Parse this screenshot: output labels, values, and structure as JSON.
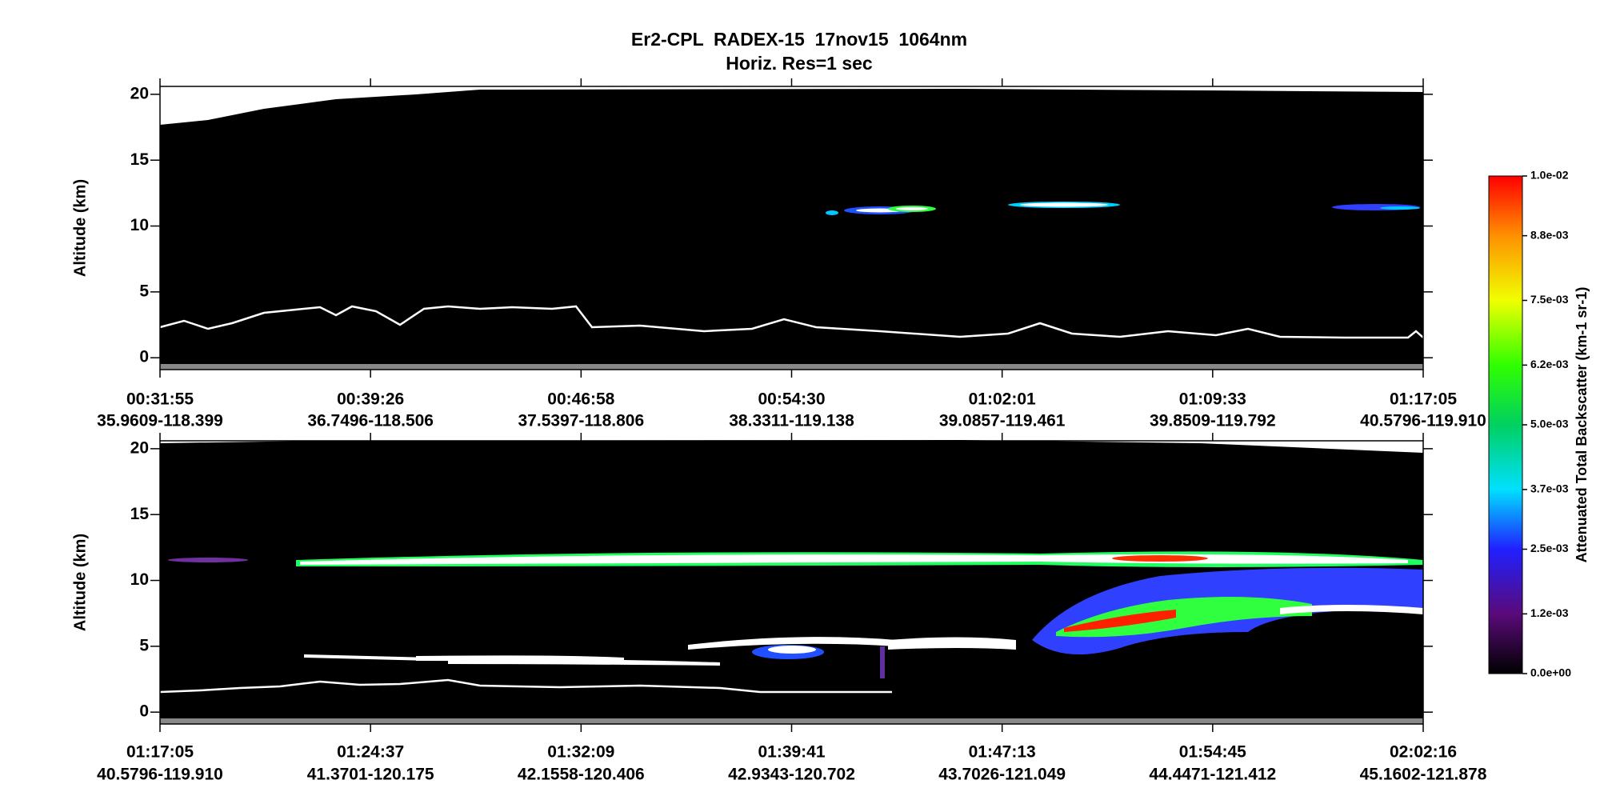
{
  "figure": {
    "title": "Er2-CPL  RADEX-15  17nov15  1064nm",
    "subtitle": "Horiz. Res=1 sec"
  },
  "chart_data": [
    {
      "type": "heatmap",
      "y_label": "Altitude (km)",
      "ylim": [
        -0.9,
        20.6
      ],
      "yticks": [
        0,
        5,
        10,
        15,
        20
      ],
      "categories": [
        "00:31:55",
        "00:39:26",
        "00:46:58",
        "00:54:30",
        "01:02:01",
        "01:09:33",
        "01:17:05"
      ],
      "locations": [
        "35.9609-118.399",
        "36.7496-118.506",
        "37.5397-118.806",
        "38.3311-119.138",
        "39.0857-119.461",
        "39.8509-119.792",
        "40.5796-119.910"
      ]
    },
    {
      "type": "heatmap",
      "y_label": "Altitude (km)",
      "ylim": [
        -0.9,
        20.6
      ],
      "yticks": [
        0,
        5,
        10,
        15,
        20
      ],
      "categories": [
        "01:17:05",
        "01:24:37",
        "01:32:09",
        "01:39:41",
        "01:47:13",
        "01:54:45",
        "02:02:16"
      ],
      "locations": [
        "40.5796-119.910",
        "41.3701-120.175",
        "42.1558-120.406",
        "42.9343-120.702",
        "43.7026-121.049",
        "44.4471-121.412",
        "45.1602-121.878"
      ]
    }
  ],
  "colorbar": {
    "label": "Attenuated Total Backscatter (km-1 sr-1)",
    "lim": [
      0,
      0.01
    ],
    "ticks": [
      {
        "value": 0,
        "label": "0.0e+00"
      },
      {
        "value": 0.0012,
        "label": "1.2e-03"
      },
      {
        "value": 0.0025,
        "label": "2.5e-03"
      },
      {
        "value": 0.0037,
        "label": "3.7e-03"
      },
      {
        "value": 0.005,
        "label": "5.0e-03"
      },
      {
        "value": 0.0062,
        "label": "6.2e-03"
      },
      {
        "value": 0.0075,
        "label": "7.5e-03"
      },
      {
        "value": 0.0088,
        "label": "8.8e-03"
      },
      {
        "value": 0.01,
        "label": "1.0e-02"
      }
    ]
  }
}
